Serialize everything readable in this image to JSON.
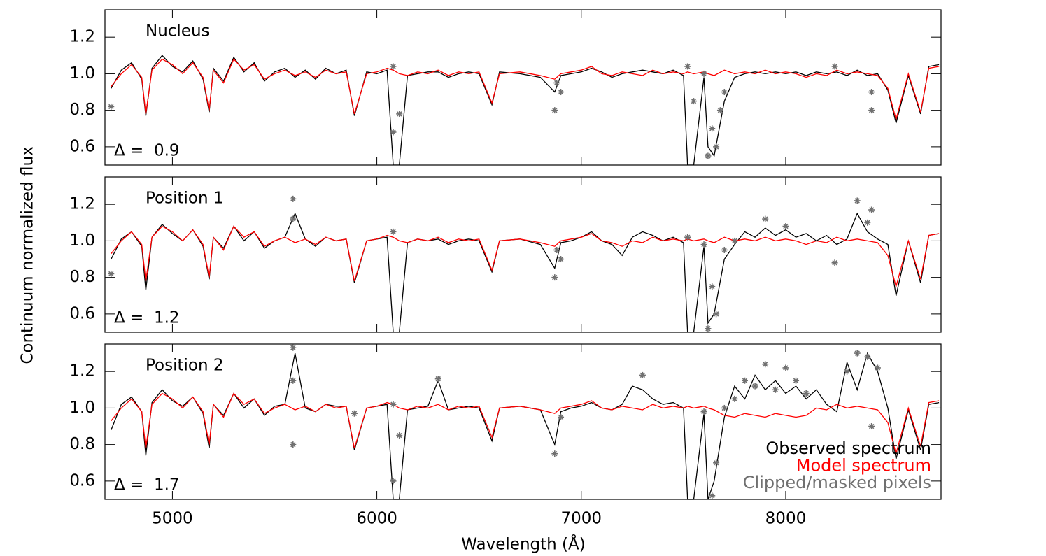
{
  "chart_data": [
    {
      "type": "line",
      "title": "Nucleus",
      "annotation": "Δ =  0.9",
      "xlim": [
        4670,
        8760
      ],
      "xticks": [
        5000,
        6000,
        7000,
        8000
      ],
      "ylim": [
        0.5,
        1.35
      ],
      "yticks": [
        0.6,
        0.8,
        {
          "value": 1,
          "label": "1.0"
        },
        1.2
      ],
      "x": [
        4700,
        4750,
        4800,
        4850,
        4870,
        4900,
        4950,
        5000,
        5050,
        5100,
        5150,
        5180,
        5200,
        5250,
        5300,
        5350,
        5400,
        5450,
        5500,
        5550,
        5600,
        5650,
        5700,
        5750,
        5800,
        5850,
        5890,
        5950,
        6000,
        6050,
        6080,
        6110,
        6150,
        6200,
        6250,
        6300,
        6350,
        6400,
        6450,
        6500,
        6563,
        6600,
        6700,
        6800,
        6870,
        6900,
        6950,
        7000,
        7050,
        7100,
        7150,
        7200,
        7250,
        7300,
        7350,
        7400,
        7450,
        7500,
        7520,
        7550,
        7600,
        7620,
        7650,
        7700,
        7750,
        7800,
        7850,
        7900,
        7950,
        8000,
        8050,
        8100,
        8150,
        8200,
        8250,
        8300,
        8350,
        8400,
        8450,
        8500,
        8540,
        8600,
        8660,
        8700,
        8750
      ],
      "series": [
        {
          "type": "line",
          "color": "#000000",
          "values": [
            0.92,
            1.02,
            1.06,
            0.97,
            0.77,
            1.03,
            1.1,
            1.04,
            1.01,
            1.07,
            0.97,
            0.79,
            1.03,
            0.96,
            1.09,
            1.01,
            1.06,
            0.96,
            1.01,
            1.03,
            0.98,
            1.02,
            0.97,
            1.03,
            1.0,
            1.02,
            0.77,
            1.01,
            1.0,
            1.02,
            0.5,
            0.5,
            0.99,
            1.0,
            1.01,
            1.01,
            0.98,
            1.0,
            1.01,
            1.0,
            0.83,
            1.01,
            1.0,
            0.98,
            0.9,
            0.99,
            1.0,
            1.01,
            1.03,
            1.01,
            0.98,
            1.0,
            1.01,
            1.02,
            1.01,
            1.0,
            1.02,
            0.99,
            0.5,
            0.5,
            0.98,
            0.6,
            0.55,
            0.85,
            0.98,
            1.0,
            1.01,
            1.0,
            1.01,
            1.0,
            1.01,
            0.99,
            1.01,
            1.0,
            1.01,
            0.99,
            1.02,
            0.99,
            1.0,
            0.91,
            0.73,
            0.99,
            0.78,
            1.04,
            1.05
          ]
        },
        {
          "type": "line",
          "color": "#ff0000",
          "values": [
            0.93,
            1.0,
            1.05,
            0.98,
            0.78,
            1.02,
            1.08,
            1.05,
            1.0,
            1.06,
            0.98,
            0.8,
            1.02,
            0.95,
            1.08,
            1.02,
            1.05,
            0.97,
            1.0,
            1.02,
            0.99,
            1.01,
            0.98,
            1.02,
            1.0,
            1.01,
            0.78,
            1.0,
            1.01,
            1.03,
            1.02,
            1.0,
            0.99,
            1.01,
            1.0,
            1.02,
            0.99,
            1.01,
            1.0,
            1.01,
            0.84,
            1.0,
            1.01,
            0.99,
            0.97,
            1.0,
            1.01,
            1.02,
            1.04,
            1.0,
            0.99,
            1.01,
            1.0,
            0.99,
            1.02,
            1.0,
            1.01,
            1.0,
            1.01,
            1.0,
            1.01,
            1.0,
            0.99,
            1.02,
            1.0,
            1.01,
            1.0,
            1.02,
            1.0,
            1.01,
            1.0,
            0.98,
            1.0,
            0.99,
            1.02,
            1.0,
            1.01,
            1.0,
            0.99,
            0.92,
            0.75,
            1.0,
            0.79,
            1.03,
            1.04
          ]
        },
        {
          "type": "scatter",
          "color": "#707070",
          "x": [
            4700,
            6080,
            6080,
            6110,
            6870,
            6880,
            6900,
            7520,
            7550,
            7600,
            7620,
            7640,
            7660,
            7680,
            7700,
            8240,
            8420,
            8420
          ],
          "values": [
            0.82,
            1.04,
            0.68,
            0.78,
            0.8,
            0.95,
            0.9,
            1.04,
            0.85,
            1.0,
            0.55,
            0.7,
            0.6,
            0.8,
            0.9,
            1.04,
            0.8,
            0.9
          ]
        }
      ]
    },
    {
      "type": "line",
      "title": "Position 1",
      "annotation": "Δ =  1.2",
      "y_label": "Continuum normalized flux",
      "xlim": [
        4670,
        8760
      ],
      "xticks": [
        5000,
        6000,
        7000,
        8000
      ],
      "ylim": [
        0.5,
        1.35
      ],
      "yticks": [
        0.6,
        0.8,
        {
          "value": 1,
          "label": "1.0"
        },
        1.2
      ],
      "x": [
        4700,
        4750,
        4800,
        4850,
        4870,
        4900,
        4950,
        5000,
        5050,
        5100,
        5150,
        5180,
        5200,
        5250,
        5300,
        5350,
        5400,
        5450,
        5500,
        5550,
        5600,
        5650,
        5700,
        5750,
        5800,
        5850,
        5890,
        5950,
        6000,
        6050,
        6080,
        6110,
        6150,
        6200,
        6250,
        6300,
        6350,
        6400,
        6450,
        6500,
        6563,
        6600,
        6700,
        6800,
        6870,
        6900,
        6950,
        7000,
        7050,
        7100,
        7150,
        7200,
        7250,
        7300,
        7350,
        7400,
        7450,
        7500,
        7520,
        7550,
        7600,
        7620,
        7650,
        7700,
        7750,
        7800,
        7850,
        7900,
        7950,
        8000,
        8050,
        8100,
        8150,
        8200,
        8250,
        8300,
        8350,
        8400,
        8450,
        8500,
        8540,
        8600,
        8660,
        8700,
        8750
      ],
      "series": [
        {
          "type": "line",
          "color": "#000000",
          "values": [
            0.9,
            1.01,
            1.05,
            0.97,
            0.73,
            1.02,
            1.09,
            1.04,
            1.0,
            1.06,
            0.97,
            0.79,
            1.02,
            0.96,
            1.08,
            1.0,
            1.05,
            0.96,
            1.0,
            1.02,
            1.15,
            1.01,
            0.97,
            1.02,
            1.0,
            1.01,
            0.77,
            1.0,
            1.01,
            1.02,
            0.5,
            0.5,
            0.99,
            1.01,
            1.0,
            1.01,
            0.98,
            1.0,
            1.01,
            1.0,
            0.83,
            1.0,
            1.01,
            0.98,
            0.85,
            0.99,
            1.0,
            1.02,
            1.05,
            1.0,
            0.98,
            0.92,
            1.02,
            1.05,
            1.03,
            1.0,
            1.02,
            0.99,
            0.5,
            0.5,
            0.97,
            0.55,
            0.6,
            0.9,
            0.98,
            1.05,
            1.02,
            1.07,
            1.03,
            1.06,
            1.02,
            1.04,
            1.0,
            1.03,
            0.98,
            1.01,
            1.15,
            1.05,
            1.01,
            0.98,
            0.7,
            1.0,
            0.77,
            1.03,
            1.04
          ]
        },
        {
          "type": "line",
          "color": "#ff0000",
          "values": [
            0.93,
            1.0,
            1.05,
            0.98,
            0.78,
            1.02,
            1.08,
            1.05,
            1.0,
            1.06,
            0.98,
            0.8,
            1.02,
            0.95,
            1.08,
            1.02,
            1.05,
            0.97,
            1.0,
            1.02,
            0.99,
            1.01,
            0.98,
            1.02,
            1.0,
            1.01,
            0.78,
            1.0,
            1.01,
            1.03,
            1.02,
            1.0,
            0.99,
            1.01,
            1.0,
            1.02,
            0.99,
            1.01,
            1.0,
            1.01,
            0.84,
            1.0,
            1.01,
            0.99,
            0.97,
            1.0,
            1.01,
            1.02,
            1.04,
            1.0,
            0.99,
            0.97,
            1.0,
            0.99,
            1.02,
            1.0,
            1.01,
            1.0,
            1.01,
            1.0,
            1.01,
            1.0,
            0.99,
            1.02,
            1.0,
            1.01,
            1.0,
            1.02,
            1.0,
            1.01,
            1.0,
            0.98,
            1.0,
            0.99,
            1.02,
            1.0,
            1.01,
            1.0,
            0.99,
            0.92,
            0.75,
            1.0,
            0.79,
            1.03,
            1.04
          ]
        },
        {
          "type": "scatter",
          "color": "#707070",
          "x": [
            4700,
            5590,
            5590,
            6080,
            6870,
            6880,
            6900,
            7520,
            7600,
            7620,
            7640,
            7660,
            7700,
            7750,
            7900,
            8000,
            8240,
            8350,
            8400,
            8420
          ],
          "values": [
            0.82,
            1.23,
            1.12,
            1.05,
            0.8,
            0.95,
            0.9,
            1.02,
            0.98,
            0.52,
            0.75,
            0.6,
            0.95,
            1.0,
            1.12,
            1.08,
            0.88,
            1.22,
            1.1,
            1.17
          ]
        }
      ]
    },
    {
      "type": "line",
      "title": "Position 2",
      "annotation": "Δ =  1.7",
      "x_label": "Wavelength (Å)",
      "legend": "lower right",
      "xlim": [
        4670,
        8760
      ],
      "xticks": [
        5000,
        6000,
        7000,
        8000
      ],
      "ylim": [
        0.5,
        1.35
      ],
      "yticks": [
        0.6,
        0.8,
        {
          "value": 1,
          "label": "1.0"
        },
        1.2
      ],
      "x": [
        4700,
        4750,
        4800,
        4850,
        4870,
        4900,
        4950,
        5000,
        5050,
        5100,
        5150,
        5180,
        5200,
        5250,
        5300,
        5350,
        5400,
        5450,
        5500,
        5550,
        5600,
        5650,
        5700,
        5750,
        5800,
        5850,
        5890,
        5950,
        6000,
        6050,
        6080,
        6110,
        6150,
        6200,
        6250,
        6300,
        6350,
        6400,
        6450,
        6500,
        6563,
        6600,
        6700,
        6800,
        6870,
        6900,
        6950,
        7000,
        7050,
        7100,
        7150,
        7200,
        7250,
        7300,
        7350,
        7400,
        7450,
        7500,
        7520,
        7550,
        7600,
        7620,
        7650,
        7700,
        7750,
        7800,
        7850,
        7900,
        7950,
        8000,
        8050,
        8100,
        8150,
        8200,
        8250,
        8300,
        8350,
        8400,
        8450,
        8500,
        8540,
        8600,
        8660,
        8700,
        8750
      ],
      "series": [
        {
          "type": "line",
          "name": "Observed spectrum",
          "color": "#000000",
          "values": [
            0.88,
            1.02,
            1.06,
            0.98,
            0.74,
            1.03,
            1.1,
            1.04,
            1.01,
            1.06,
            0.97,
            0.78,
            1.02,
            0.96,
            1.08,
            1.0,
            1.05,
            0.96,
            1.01,
            1.02,
            1.3,
            1.0,
            0.98,
            1.02,
            1.01,
            1.01,
            0.77,
            1.0,
            1.01,
            1.02,
            0.5,
            0.5,
            0.99,
            1.0,
            1.01,
            1.15,
            0.99,
            1.0,
            1.01,
            1.0,
            0.82,
            1.0,
            1.01,
            0.99,
            0.8,
            0.98,
            1.0,
            1.01,
            1.03,
            1.0,
            0.99,
            1.02,
            1.12,
            1.1,
            1.05,
            1.02,
            1.03,
            1.0,
            0.5,
            0.5,
            0.97,
            0.5,
            0.6,
            0.95,
            1.12,
            1.05,
            1.18,
            1.1,
            1.15,
            1.08,
            1.12,
            1.05,
            1.1,
            1.02,
            0.98,
            1.25,
            1.1,
            1.3,
            1.2,
            1.0,
            0.72,
            0.99,
            0.77,
            1.02,
            1.03
          ]
        },
        {
          "type": "line",
          "name": "Model spectrum",
          "color": "#ff0000",
          "values": [
            0.93,
            1.0,
            1.05,
            0.98,
            0.78,
            1.02,
            1.08,
            1.05,
            1.0,
            1.06,
            0.98,
            0.8,
            1.02,
            0.95,
            1.08,
            1.02,
            1.05,
            0.97,
            1.0,
            1.02,
            0.99,
            1.01,
            0.98,
            1.02,
            1.0,
            1.01,
            0.78,
            1.0,
            1.01,
            1.03,
            1.02,
            1.0,
            0.99,
            1.01,
            1.0,
            1.02,
            0.99,
            1.01,
            1.0,
            1.01,
            0.84,
            1.0,
            1.01,
            0.99,
            0.97,
            1.0,
            1.01,
            1.02,
            1.04,
            1.0,
            0.99,
            1.01,
            1.0,
            0.99,
            1.02,
            1.0,
            1.01,
            1.0,
            1.01,
            1.0,
            1.01,
            1.0,
            0.99,
            0.96,
            0.95,
            0.97,
            0.96,
            0.95,
            0.97,
            0.96,
            0.95,
            0.96,
            1.0,
            0.99,
            1.02,
            1.0,
            1.01,
            1.0,
            0.99,
            0.92,
            0.75,
            1.0,
            0.79,
            1.03,
            1.04
          ]
        },
        {
          "type": "scatter",
          "name": "Clipped/masked pixels",
          "color": "#707070",
          "x": [
            5590,
            5590,
            5590,
            5890,
            6080,
            6080,
            6110,
            6300,
            6870,
            6900,
            7300,
            7600,
            7640,
            7660,
            7700,
            7750,
            7800,
            7850,
            7900,
            7950,
            8000,
            8050,
            8100,
            8300,
            8350,
            8400,
            8420,
            8450
          ],
          "values": [
            1.33,
            1.15,
            0.8,
            0.97,
            1.02,
            0.6,
            0.85,
            1.16,
            0.75,
            0.95,
            1.18,
            0.98,
            0.52,
            0.7,
            1.0,
            1.05,
            1.15,
            1.12,
            1.24,
            1.1,
            1.22,
            1.15,
            1.08,
            1.2,
            1.3,
            1.28,
            0.9,
            1.22
          ]
        }
      ]
    }
  ]
}
